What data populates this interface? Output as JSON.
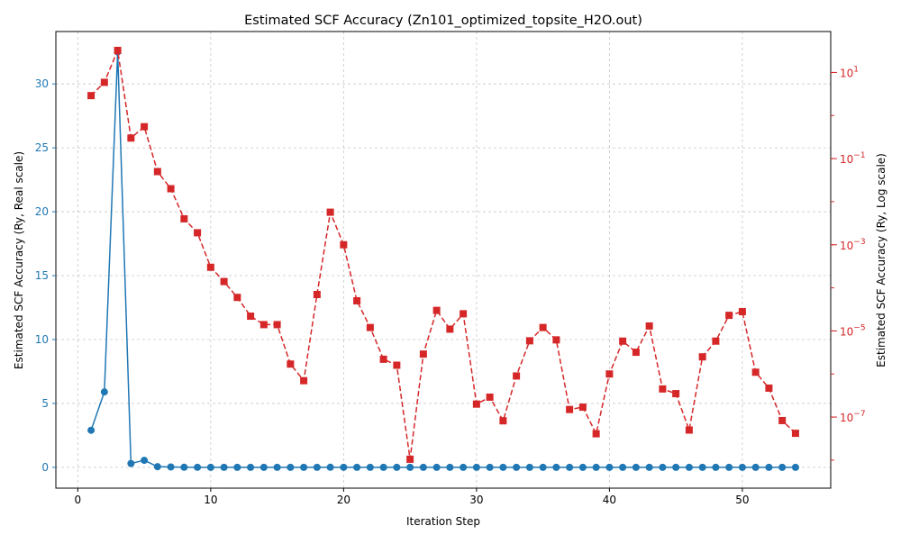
{
  "chart_data": {
    "type": "line",
    "title": "Estimated SCF Accuracy (Zn101_optimized_topsite_H2O.out)",
    "xlabel": "Iteration Step",
    "ylabel_left": "Estimated SCF Accuracy (Ry, Real scale)",
    "ylabel_right": "Estimated SCF Accuracy (Ry, Log scale)",
    "xlim": [
      -1.65,
      56.65
    ],
    "ylim_left": [
      -1.63,
      34.1
    ],
    "ylim_right_log10": [
      -8.65,
      1.95
    ],
    "x_ticks": [
      0,
      10,
      20,
      30,
      40,
      50
    ],
    "y_left_ticks": [
      0,
      5,
      10,
      15,
      20,
      25,
      30
    ],
    "y_right_ticks": [
      {
        "exp": 1,
        "base": "10",
        "power": "1"
      },
      {
        "exp": -1,
        "base": "10",
        "power": "−1"
      },
      {
        "exp": -3,
        "base": "10",
        "power": "−3"
      },
      {
        "exp": -5,
        "base": "10",
        "power": "−5"
      },
      {
        "exp": -7,
        "base": "10",
        "power": "−7"
      }
    ],
    "grid": true,
    "colors": {
      "left": "#1f77b4",
      "right": "#d62728",
      "grid": "#b0b0b0"
    },
    "x": [
      1,
      2,
      3,
      4,
      5,
      6,
      7,
      8,
      9,
      10,
      11,
      12,
      13,
      14,
      15,
      16,
      17,
      18,
      19,
      20,
      21,
      22,
      23,
      24,
      25,
      26,
      27,
      28,
      29,
      30,
      31,
      32,
      33,
      34,
      35,
      36,
      37,
      38,
      39,
      40,
      41,
      42,
      43,
      44,
      45,
      46,
      47,
      48,
      49,
      50,
      51,
      52,
      53,
      54
    ],
    "series": [
      {
        "axis": "left",
        "marker": "circle",
        "linestyle": "solid",
        "values": [
          2.9,
          5.9,
          32.5,
          0.3,
          0.55,
          0.05,
          0.03,
          0.005,
          0.003,
          0.0003,
          0.0001,
          6e-05,
          2e-05,
          1e-05,
          1e-05,
          2e-06,
          7e-07,
          7e-05,
          0.006,
          0.001,
          5e-05,
          1e-05,
          2e-06,
          1.5e-06,
          1e-08,
          3e-06,
          3e-05,
          1e-05,
          2.5e-05,
          2e-07,
          3e-07,
          8e-08,
          1e-06,
          6e-06,
          1.2e-05,
          6e-06,
          1.5e-07,
          1.7e-07,
          4e-08,
          1.1e-06,
          6e-06,
          3.2e-06,
          1.3e-05,
          4.5e-07,
          3.5e-07,
          5e-08,
          2.5e-06,
          5.9e-06,
          2.3e-05,
          2.8e-05,
          1.1e-06,
          4.8e-07,
          8.6e-08,
          4.3e-08
        ]
      },
      {
        "axis": "right",
        "marker": "square",
        "linestyle": "dashed",
        "values": [
          2.9,
          5.9,
          32.5,
          0.3,
          0.55,
          0.05,
          0.02,
          0.004,
          0.0019,
          0.0003,
          0.00014,
          6e-05,
          2.2e-05,
          1.4e-05,
          1.4e-05,
          1.7e-06,
          7e-07,
          7e-05,
          0.0057,
          0.001,
          5e-05,
          1.2e-05,
          2.2e-06,
          1.6e-06,
          1.05e-08,
          2.9e-06,
          3e-05,
          1.1e-05,
          2.5e-05,
          2e-07,
          2.9e-07,
          8.2e-08,
          9e-07,
          5.9e-06,
          1.2e-05,
          6.2e-06,
          1.5e-07,
          1.7e-07,
          4.1e-08,
          1e-06,
          5.8e-06,
          3.2e-06,
          1.3e-05,
          4.5e-07,
          3.5e-07,
          5e-08,
          2.5e-06,
          5.8e-06,
          2.3e-05,
          2.8e-05,
          1.1e-06,
          4.7e-07,
          8.3e-08,
          4.2e-08
        ]
      }
    ]
  }
}
